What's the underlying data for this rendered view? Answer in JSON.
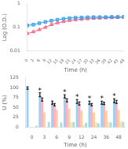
{
  "chart_data": [
    {
      "type": "line",
      "xlabel": "Time (h)",
      "ylabel": "Log (O.D.)",
      "x": [
        0,
        3,
        6,
        9,
        12,
        15,
        18,
        21,
        24,
        27,
        30,
        33,
        36,
        39,
        42,
        45,
        48
      ],
      "series": [
        {
          "values": [
            0.12,
            0.13,
            0.15,
            0.17,
            0.19,
            0.21,
            0.23,
            0.245,
            0.255,
            0.26,
            0.265,
            0.27,
            0.27,
            0.27,
            0.275,
            0.275,
            0.28
          ],
          "marker": "square"
        },
        {
          "values": [
            0.055,
            0.065,
            0.08,
            0.1,
            0.13,
            0.155,
            0.175,
            0.195,
            0.21,
            0.22,
            0.23,
            0.24,
            0.245,
            0.25,
            0.255,
            0.26,
            0.265
          ],
          "marker": "triangle"
        }
      ],
      "xlim": [
        0,
        48
      ],
      "xticks": [
        0,
        3,
        6,
        9,
        12,
        15,
        18,
        21,
        24,
        27,
        30,
        33,
        36,
        39,
        42,
        45,
        48
      ],
      "ylim": [
        0.01,
        1
      ],
      "yticks": [
        0.01,
        0.1,
        1
      ],
      "log": "y",
      "grid": false
    },
    {
      "type": "bar",
      "xlabel": "Time (h)",
      "ylabel": "U (%)",
      "categories": [
        "0",
        "3",
        "6",
        "9",
        "12",
        "24",
        "36",
        "48"
      ],
      "series": [
        {
          "values": [
            99,
            82,
            62,
            78,
            65,
            62,
            62,
            67
          ],
          "errors": [
            3,
            5,
            4,
            4,
            5,
            4,
            4,
            5
          ]
        },
        {
          "values": [
            0,
            70,
            57,
            68,
            60,
            57,
            60,
            64
          ],
          "errors": [
            0,
            4,
            3,
            4,
            4,
            3,
            3,
            4
          ]
        },
        {
          "values": [
            0,
            38,
            44,
            47,
            42,
            37,
            42,
            44
          ]
        },
        {
          "values": [
            0,
            0,
            0,
            12,
            6,
            13,
            13,
            15
          ]
        },
        {
          "values": [
            4,
            13,
            12,
            13,
            11,
            10,
            12,
            13
          ]
        }
      ],
      "ylim": [
        0,
        125
      ],
      "yticks": [
        0,
        25,
        50,
        75,
        100,
        125
      ],
      "grid": false,
      "annotations": [
        {
          "text": "*",
          "x": "3"
        },
        {
          "text": "*",
          "x": "9"
        },
        {
          "text": "*",
          "x": "12"
        },
        {
          "text": "*",
          "x": "24"
        },
        {
          "text": "*",
          "x": "36"
        },
        {
          "text": "*",
          "x": "48"
        }
      ]
    }
  ]
}
